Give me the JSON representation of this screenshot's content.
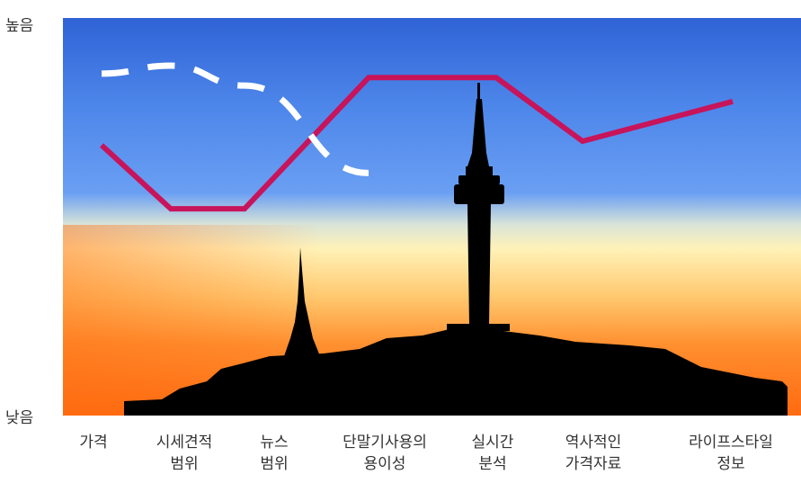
{
  "chart_data": {
    "type": "line",
    "title": "",
    "y_axis": {
      "top_label": "높음",
      "bottom_label": "낮음",
      "range": [
        0,
        100
      ]
    },
    "categories": [
      "가격",
      "시세견적\n범위",
      "뉴스\n범위",
      "단말기사용의\n용이성",
      "실시간\n분석",
      "역사적인\n가격자료",
      "라이프스타일\n정보"
    ],
    "series": [
      {
        "style": "solid",
        "color": "#c8145a",
        "values": [
          68,
          52,
          52,
          85,
          85,
          69,
          79
        ]
      },
      {
        "style": "dashed",
        "color": "#ffffff",
        "values": [
          86,
          88,
          83,
          61,
          null,
          null,
          null
        ]
      }
    ],
    "background": {
      "sky_top": "#2f63d6",
      "sky_mid": "#5b93ee",
      "horizon": "#fff2b8",
      "ground_glow": "#ff6a10",
      "silhouette": "#000000"
    },
    "grid": false,
    "legend": "none"
  }
}
